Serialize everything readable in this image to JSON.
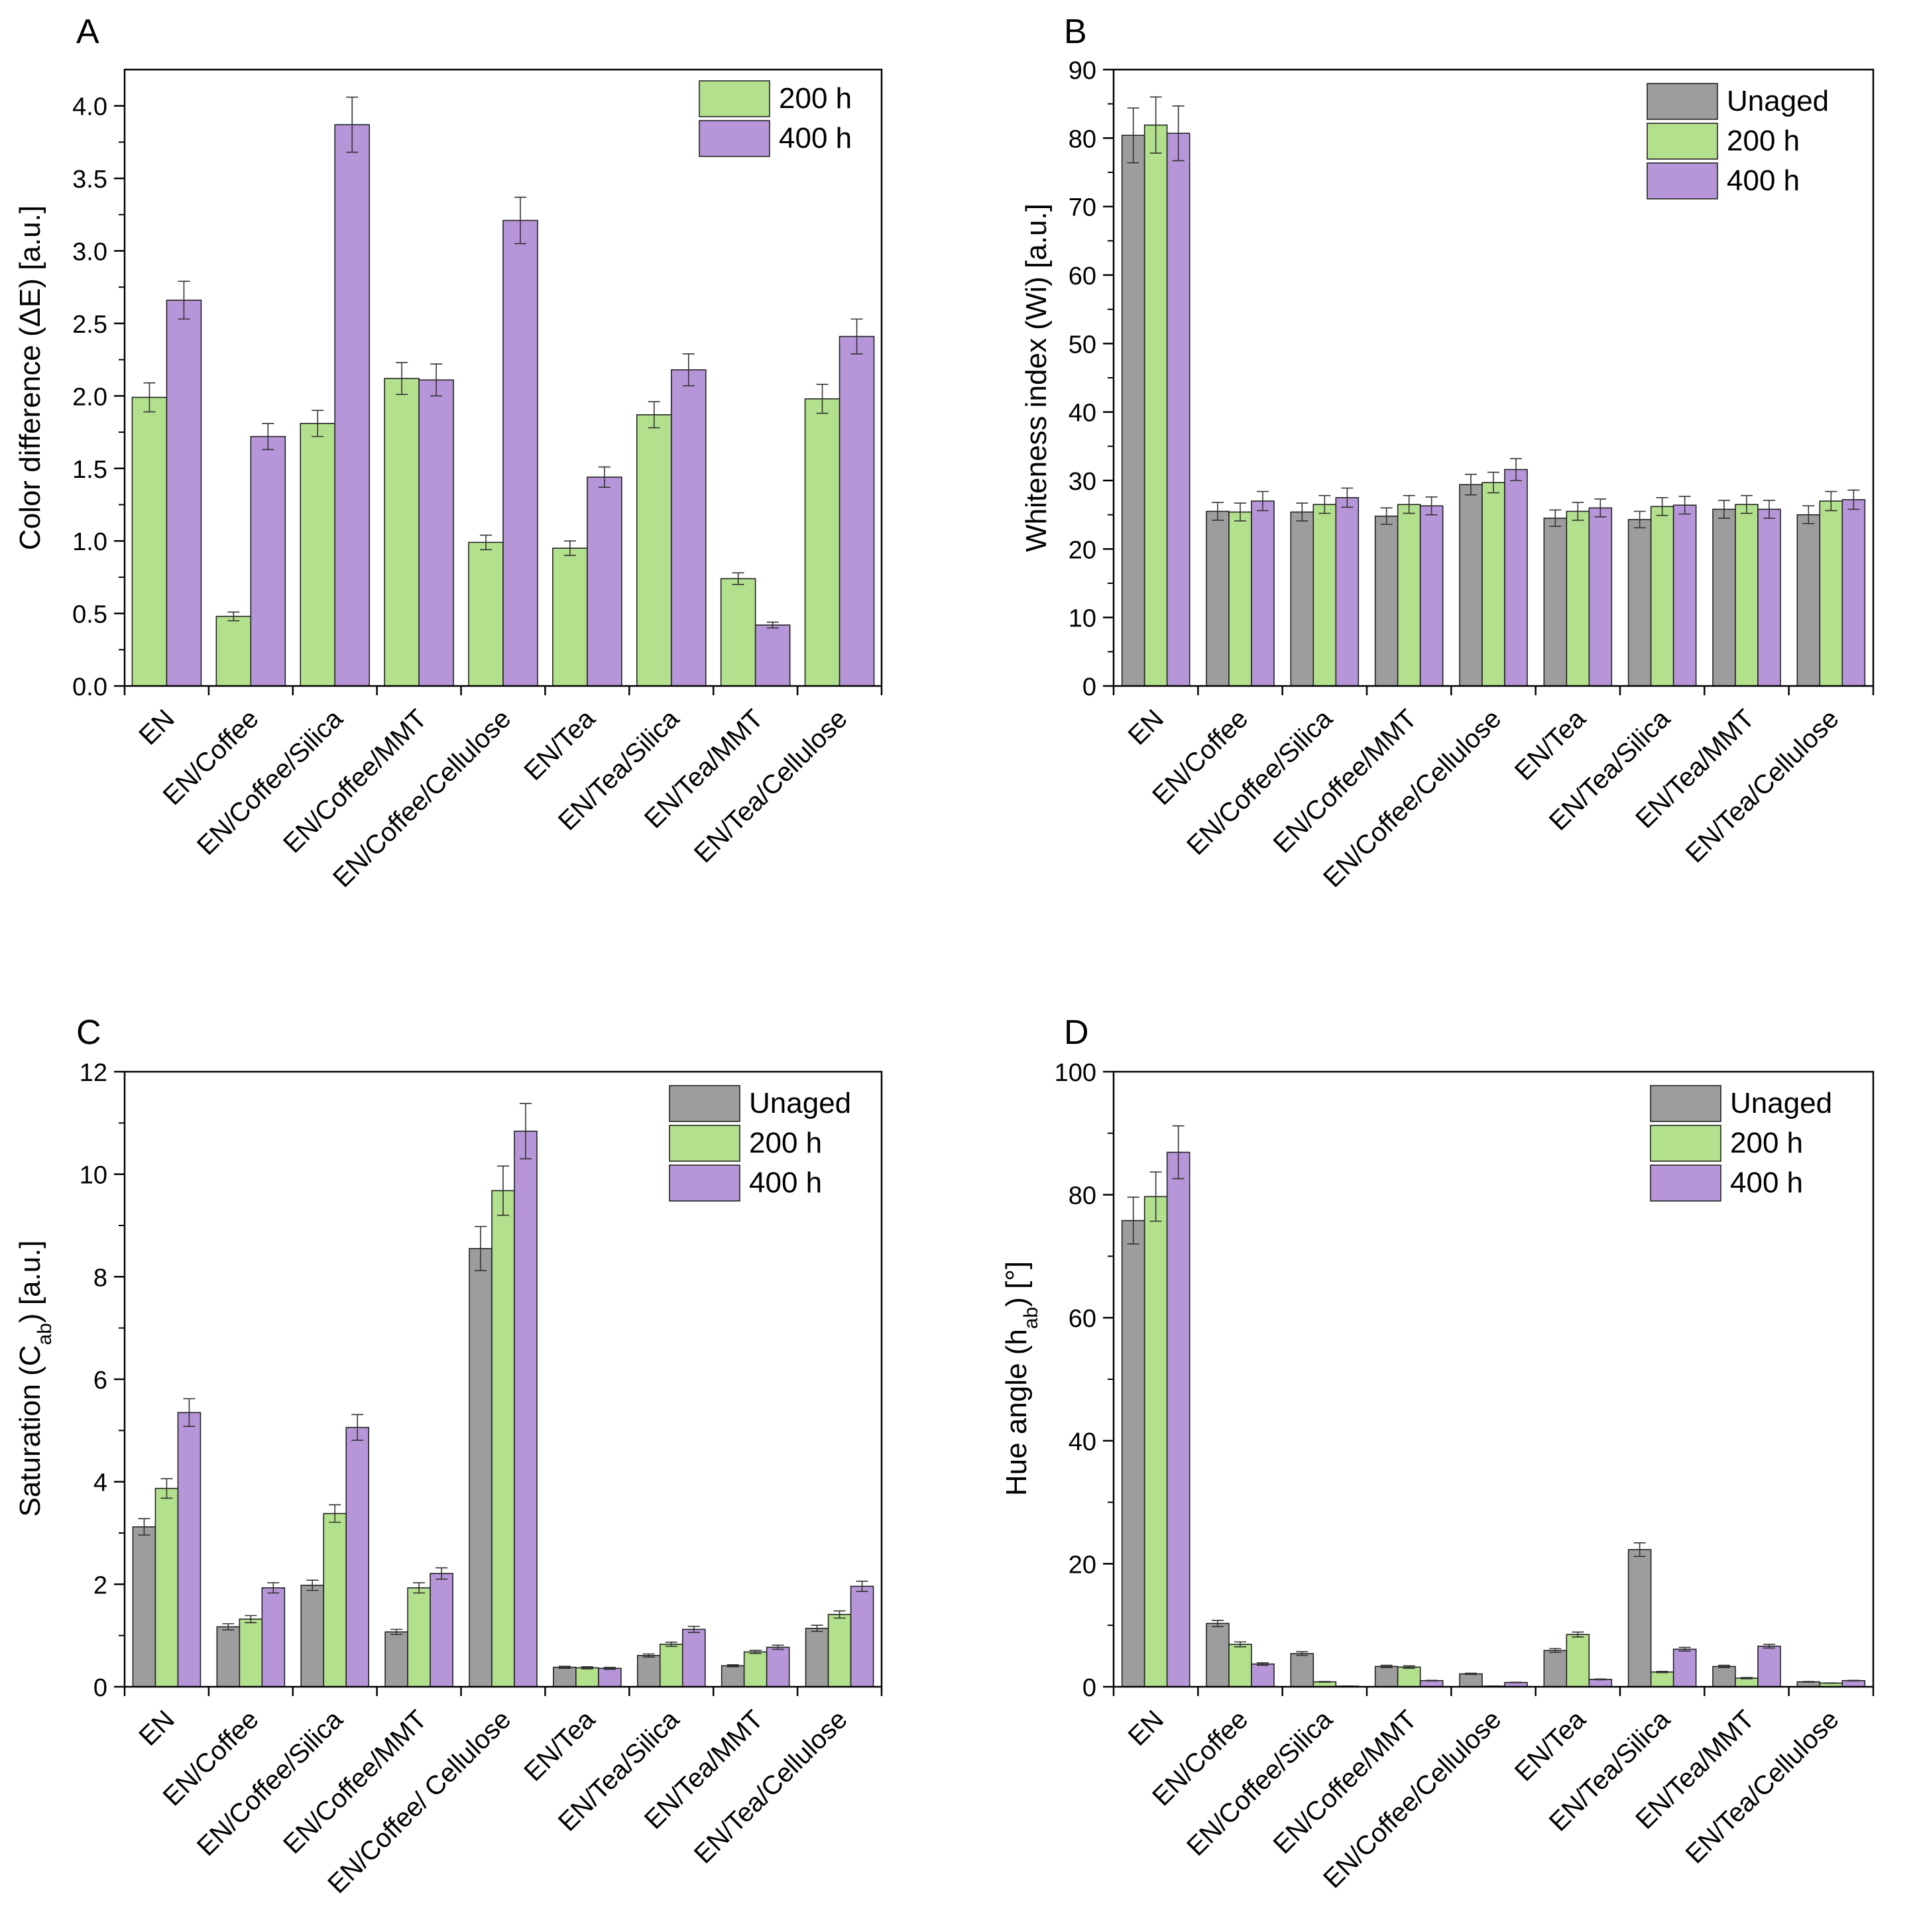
{
  "colors": {
    "unaged": "#9d9d9d",
    "h200": "#b3e08c",
    "h400": "#b696d8",
    "axis": "#000000"
  },
  "chart_data": [
    {
      "panel": "A",
      "type": "bar",
      "title": "",
      "xlabel": "",
      "ylabel": "Color difference (ΔE) [a.u.]",
      "ylim": [
        0,
        4.25
      ],
      "yticks": [
        "0.0",
        "0.5",
        "1.0",
        "1.5",
        "2.0",
        "2.5",
        "3.0",
        "3.5",
        "4.0"
      ],
      "ytick_values": [
        0,
        0.5,
        1,
        1.5,
        2,
        2.5,
        3,
        3.5,
        4
      ],
      "legend_position": "top-right",
      "categories": [
        "EN",
        "EN/Coffee",
        "EN/Coffee/Silica",
        "EN/Coffee/MMT",
        "EN/Coffee/Cellulose",
        "EN/Tea",
        "EN/Tea/Silica",
        "EN/Tea/MMT",
        "EN/Tea/Cellulose"
      ],
      "series": [
        {
          "name": "200 h",
          "color_key": "h200",
          "values": [
            1.99,
            0.48,
            1.81,
            2.12,
            0.99,
            0.95,
            1.87,
            0.74,
            1.98
          ],
          "errors": [
            0.1,
            0.03,
            0.09,
            0.11,
            0.05,
            0.05,
            0.09,
            0.04,
            0.1
          ]
        },
        {
          "name": "400 h",
          "color_key": "h400",
          "values": [
            2.66,
            1.72,
            3.87,
            2.11,
            3.21,
            1.44,
            2.18,
            0.42,
            2.41
          ],
          "errors": [
            0.13,
            0.09,
            0.19,
            0.11,
            0.16,
            0.07,
            0.11,
            0.02,
            0.12
          ]
        }
      ]
    },
    {
      "panel": "B",
      "type": "bar",
      "title": "",
      "xlabel": "",
      "ylabel": "Whiteness index (Wi) [a.u.]",
      "ylim": [
        0,
        90
      ],
      "yticks": [
        "0",
        "10",
        "20",
        "30",
        "40",
        "50",
        "60",
        "70",
        "80",
        "90"
      ],
      "ytick_values": [
        0,
        10,
        20,
        30,
        40,
        50,
        60,
        70,
        80,
        90
      ],
      "legend_position": "top-right",
      "categories": [
        "EN",
        "EN/Coffee",
        "EN/Coffee/Silica",
        "EN/Coffee/MMT",
        "EN/Coffee/Cellulose",
        "EN/Tea",
        "EN/Tea/Silica",
        "EN/Tea/MMT",
        "EN/Tea/Cellulose"
      ],
      "series": [
        {
          "name": "Unaged",
          "color_key": "unaged",
          "values": [
            80.4,
            25.5,
            25.4,
            24.8,
            29.4,
            24.5,
            24.3,
            25.8,
            25.0
          ],
          "errors": [
            4.0,
            1.3,
            1.3,
            1.2,
            1.5,
            1.2,
            1.2,
            1.3,
            1.3
          ]
        },
        {
          "name": "200 h",
          "color_key": "h200",
          "values": [
            81.9,
            25.4,
            26.5,
            26.5,
            29.7,
            25.5,
            26.2,
            26.5,
            27.0
          ],
          "errors": [
            4.1,
            1.3,
            1.3,
            1.3,
            1.5,
            1.3,
            1.3,
            1.3,
            1.4
          ]
        },
        {
          "name": "400 h",
          "color_key": "h400",
          "values": [
            80.7,
            27.0,
            27.5,
            26.3,
            31.6,
            26.0,
            26.4,
            25.8,
            27.2
          ],
          "errors": [
            4.0,
            1.4,
            1.4,
            1.3,
            1.6,
            1.3,
            1.3,
            1.3,
            1.4
          ]
        }
      ]
    },
    {
      "panel": "C",
      "type": "bar",
      "title": "",
      "xlabel": "",
      "ylabel_main": "Saturation (C",
      "ylabel_sub": "ab",
      "ylabel_tail": ") [a.u.]",
      "ylim": [
        0,
        12
      ],
      "yticks": [
        "0",
        "2",
        "4",
        "6",
        "8",
        "10",
        "12"
      ],
      "ytick_values": [
        0,
        2,
        4,
        6,
        8,
        10,
        12
      ],
      "legend_position": "top-right",
      "categories": [
        "EN",
        "EN/Coffee",
        "EN/Coffee/Silica",
        "EN/Coffee/MMT",
        "EN/Coffee/ Cellulose",
        "EN/Tea",
        "EN/Tea/Silica",
        "EN/Tea/MMT",
        "EN/Tea/Cellulose"
      ],
      "series": [
        {
          "name": "Unaged",
          "color_key": "unaged",
          "values": [
            3.12,
            1.17,
            1.98,
            1.07,
            8.55,
            0.38,
            0.61,
            0.41,
            1.14
          ],
          "errors": [
            0.16,
            0.06,
            0.1,
            0.05,
            0.43,
            0.02,
            0.03,
            0.02,
            0.06
          ]
        },
        {
          "name": "200 h",
          "color_key": "h200",
          "values": [
            3.87,
            1.32,
            3.38,
            1.93,
            9.68,
            0.37,
            0.83,
            0.68,
            1.41
          ],
          "errors": [
            0.19,
            0.07,
            0.17,
            0.1,
            0.48,
            0.02,
            0.04,
            0.03,
            0.07
          ]
        },
        {
          "name": "400 h",
          "color_key": "h400",
          "values": [
            5.35,
            1.93,
            5.06,
            2.21,
            10.84,
            0.36,
            1.12,
            0.77,
            1.96
          ],
          "errors": [
            0.27,
            0.1,
            0.25,
            0.11,
            0.54,
            0.02,
            0.06,
            0.04,
            0.1
          ]
        }
      ]
    },
    {
      "panel": "D",
      "type": "bar",
      "title": "",
      "xlabel": "",
      "ylabel_main": "Hue angle (h",
      "ylabel_sub": "ab",
      "ylabel_tail": ") [°]",
      "ylim": [
        0,
        100
      ],
      "yticks": [
        "0",
        "20",
        "40",
        "60",
        "80",
        "100"
      ],
      "ytick_values": [
        0,
        20,
        40,
        60,
        80,
        100
      ],
      "legend_position": "top-right",
      "categories": [
        "EN",
        "EN/Coffee",
        "EN/Coffee/Silica",
        "EN/Coffee/MMT",
        "EN/Coffee/Cellulose",
        "EN/Tea",
        "EN/Tea/Silica",
        "EN/Tea/MMT",
        "EN/Tea/Cellulose"
      ],
      "series": [
        {
          "name": "Unaged",
          "color_key": "unaged",
          "values": [
            75.8,
            10.3,
            5.4,
            3.3,
            2.1,
            5.9,
            22.3,
            3.3,
            0.8
          ],
          "errors": [
            3.8,
            0.5,
            0.3,
            0.2,
            0.1,
            0.3,
            1.1,
            0.2,
            0.05
          ]
        },
        {
          "name": "200 h",
          "color_key": "h200",
          "values": [
            79.7,
            6.9,
            0.8,
            3.2,
            0.1,
            8.5,
            2.4,
            1.4,
            0.6
          ],
          "errors": [
            4.0,
            0.4,
            0.05,
            0.2,
            0.01,
            0.4,
            0.1,
            0.1,
            0.03
          ]
        },
        {
          "name": "400 h",
          "color_key": "h400",
          "values": [
            86.9,
            3.7,
            0.1,
            1.0,
            0.7,
            1.2,
            6.1,
            6.6,
            1.0
          ],
          "errors": [
            4.3,
            0.2,
            0.01,
            0.05,
            0.04,
            0.06,
            0.3,
            0.3,
            0.05
          ]
        }
      ]
    }
  ]
}
